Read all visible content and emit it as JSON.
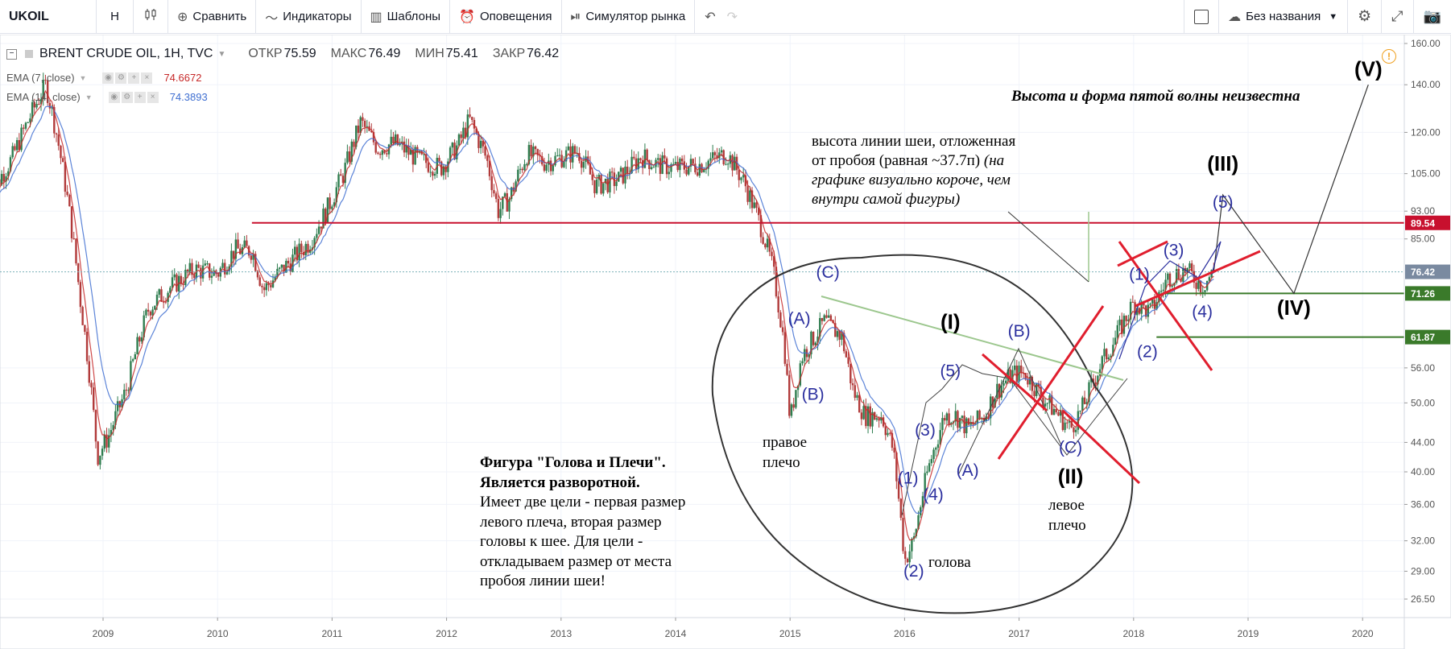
{
  "toolbar": {
    "symbol": "UKOIL",
    "interval": "H",
    "compare": "Сравнить",
    "indicators": "Индикаторы",
    "templates": "Шаблоны",
    "alerts": "Оповещения",
    "replay": "Симулятор рынка",
    "layout_name": "Без названия"
  },
  "legend": {
    "title": "BRENT CRUDE OIL, 1H, TVC",
    "open_label": "ОТКР",
    "open": "75.59",
    "high_label": "МАКС",
    "high": "76.49",
    "low_label": "МИН",
    "low": "75.41",
    "close_label": "ЗАКР",
    "close": "76.42",
    "ema1_name": "EMA (7, close)",
    "ema1_value": "74.6672",
    "ema2_name": "EMA (14, close)",
    "ema2_value": "74.3893"
  },
  "colors": {
    "ema_fast": "#c62828",
    "ema_slow": "#3f6fd1",
    "up": "#2e7d4f",
    "down": "#b13a3a",
    "level_red": "#c8102e",
    "level_green": "#3a7a2a",
    "cross": "#e01e2e",
    "wave": "#2b2f9e"
  },
  "annotations": {
    "fifth_wave": "Высота и форма пятой волны неизвестна",
    "neck_1": "высота линии шеи, отложенная",
    "neck_2": "от пробоя (равная ~37.7п)",
    "neck_3": "(на",
    "neck_4": "графике визуально короче, чем",
    "neck_5": "внутри самой фигуры)",
    "hs_1": "Фигура \"Голова и Плечи\".",
    "hs_2": "Является разворотной.",
    "hs_3": "Имеет две цели - первая размер",
    "hs_4": "левого плеча, вторая размер",
    "hs_5": "головы к шее. Для цели -",
    "hs_6": "откладываем размер от места",
    "hs_7": "пробоя линии шеи!",
    "right_shoulder_1": "правое",
    "right_shoulder_2": "плечо",
    "left_shoulder_1": "левое",
    "left_shoulder_2": "плечо",
    "head": "голова"
  },
  "chart_data": {
    "type": "candlestick",
    "xlabel": "",
    "ylabel": "",
    "x_ticks": [
      "2009",
      "2010",
      "2011",
      "2012",
      "2013",
      "2014",
      "2015",
      "2016",
      "2017",
      "2018",
      "2019",
      "2020"
    ],
    "y_ticks": [
      "160.00",
      "140.00",
      "120.00",
      "105.00",
      "93.00",
      "85.00",
      "56.00",
      "50.00",
      "44.00",
      "40.00",
      "36.00",
      "32.00",
      "29.00",
      "26.50"
    ],
    "price_labels": [
      {
        "label": "89.54",
        "value": 89.54,
        "color": "#c8102e"
      },
      {
        "label": "76.42",
        "value": 76.42,
        "color": "#7a8aa0"
      },
      {
        "label": "71.26",
        "value": 71.26,
        "color": "#3a7a2a"
      },
      {
        "label": "61.87",
        "value": 61.87,
        "color": "#3a7a2a"
      }
    ],
    "levels": [
      {
        "value": 89.54,
        "from": 2010.3,
        "color": "#c8102e"
      },
      {
        "value": 71.26,
        "from": 2018.25,
        "color": "#3a7a2a"
      },
      {
        "value": 61.87,
        "from": 2018.2,
        "color": "#3a7a2a"
      }
    ],
    "price_path": [
      [
        2008.0,
        97
      ],
      [
        2008.2,
        110
      ],
      [
        2008.35,
        125
      ],
      [
        2008.5,
        140
      ],
      [
        2008.6,
        118
      ],
      [
        2008.8,
        70
      ],
      [
        2008.95,
        42
      ],
      [
        2009.05,
        45
      ],
      [
        2009.2,
        52
      ],
      [
        2009.4,
        68
      ],
      [
        2009.6,
        73
      ],
      [
        2009.8,
        77
      ],
      [
        2010.0,
        76
      ],
      [
        2010.15,
        82
      ],
      [
        2010.3,
        82
      ],
      [
        2010.4,
        72
      ],
      [
        2010.6,
        78
      ],
      [
        2010.8,
        84
      ],
      [
        2010.95,
        93
      ],
      [
        2011.1,
        105
      ],
      [
        2011.25,
        124
      ],
      [
        2011.4,
        114
      ],
      [
        2011.55,
        116
      ],
      [
        2011.75,
        110
      ],
      [
        2011.95,
        107
      ],
      [
        2012.1,
        115
      ],
      [
        2012.2,
        125
      ],
      [
        2012.35,
        110
      ],
      [
        2012.45,
        93
      ],
      [
        2012.55,
        97
      ],
      [
        2012.7,
        112
      ],
      [
        2012.85,
        109
      ],
      [
        2012.95,
        110
      ],
      [
        2013.15,
        113
      ],
      [
        2013.3,
        101
      ],
      [
        2013.5,
        103
      ],
      [
        2013.7,
        111
      ],
      [
        2013.85,
        108
      ],
      [
        2014.0,
        107
      ],
      [
        2014.2,
        108
      ],
      [
        2014.45,
        112
      ],
      [
        2014.6,
        102
      ],
      [
        2014.75,
        88
      ],
      [
        2014.85,
        77
      ],
      [
        2014.95,
        60
      ],
      [
        2015.0,
        47
      ],
      [
        2015.1,
        58
      ],
      [
        2015.3,
        65
      ],
      [
        2015.45,
        62
      ],
      [
        2015.55,
        52
      ],
      [
        2015.65,
        48
      ],
      [
        2015.8,
        48
      ],
      [
        2015.9,
        43
      ],
      [
        2016.0,
        30
      ],
      [
        2016.08,
        32
      ],
      [
        2016.2,
        40
      ],
      [
        2016.35,
        48
      ],
      [
        2016.45,
        48
      ],
      [
        2016.55,
        46
      ],
      [
        2016.7,
        48
      ],
      [
        2016.8,
        52
      ],
      [
        2016.95,
        55
      ],
      [
        2017.05,
        55
      ],
      [
        2017.2,
        51
      ],
      [
        2017.35,
        48
      ],
      [
        2017.45,
        46
      ],
      [
        2017.55,
        49
      ],
      [
        2017.7,
        56
      ],
      [
        2017.85,
        62
      ],
      [
        2018.0,
        69
      ],
      [
        2018.15,
        67
      ],
      [
        2018.3,
        75
      ],
      [
        2018.45,
        77
      ],
      [
        2018.6,
        73
      ],
      [
        2018.7,
        76.42
      ]
    ],
    "emas": [
      {
        "name": "EMA (7, close)",
        "value": 74.6672
      },
      {
        "name": "EMA (14, close)",
        "value": 74.3893
      }
    ],
    "projection": [
      [
        2018.7,
        76.42
      ],
      [
        2018.78,
        98
      ],
      [
        2019.4,
        71.26
      ],
      [
        2020.05,
        140
      ]
    ],
    "neckline_description": "neckline from (C) 2015 through breakout",
    "wave_labels": [
      {
        "label": "(A)",
        "x": 2015.08,
        "y": 64.5,
        "color": "#2b2f9e"
      },
      {
        "label": "(B)",
        "x": 2015.2,
        "y": 50.5,
        "color": "#2b2f9e"
      },
      {
        "label": "(C)",
        "x": 2015.33,
        "y": 75,
        "color": "#2b2f9e"
      },
      {
        "label": "(1)",
        "x": 2016.03,
        "y": 38.5,
        "color": "#2b2f9e"
      },
      {
        "label": "(2)",
        "x": 2016.08,
        "y": 28.5,
        "color": "#2b2f9e"
      },
      {
        "label": "(3)",
        "x": 2016.18,
        "y": 45,
        "color": "#2b2f9e"
      },
      {
        "label": "(4)",
        "x": 2016.25,
        "y": 36.5,
        "color": "#2b2f9e"
      },
      {
        "label": "(5)",
        "x": 2016.4,
        "y": 54.5,
        "color": "#2b2f9e"
      },
      {
        "label": "(I)",
        "x": 2016.4,
        "y": 63.5,
        "color": "#000000"
      },
      {
        "label": "(A)",
        "x": 2016.55,
        "y": 39.5,
        "color": "#2b2f9e"
      },
      {
        "label": "(B)",
        "x": 2017.0,
        "y": 62,
        "color": "#2b2f9e"
      },
      {
        "label": "(C)",
        "x": 2017.45,
        "y": 42.5,
        "color": "#2b2f9e"
      },
      {
        "label": "(II)",
        "x": 2017.45,
        "y": 38.5,
        "color": "#000000"
      },
      {
        "label": "(1)",
        "x": 2018.05,
        "y": 74.5,
        "color": "#2b2f9e"
      },
      {
        "label": "(2)",
        "x": 2018.12,
        "y": 58,
        "color": "#2b2f9e"
      },
      {
        "label": "(3)",
        "x": 2018.35,
        "y": 80.5,
        "color": "#2b2f9e"
      },
      {
        "label": "(4)",
        "x": 2018.6,
        "y": 66,
        "color": "#2b2f9e"
      },
      {
        "label": "(5)",
        "x": 2018.78,
        "y": 94,
        "color": "#2b2f9e"
      },
      {
        "label": "(III)",
        "x": 2018.78,
        "y": 106,
        "color": "#000000"
      },
      {
        "label": "(IV)",
        "x": 2019.4,
        "y": 66.5,
        "color": "#000000"
      },
      {
        "label": "(V)",
        "x": 2020.05,
        "y": 144,
        "color": "#000000"
      }
    ]
  }
}
